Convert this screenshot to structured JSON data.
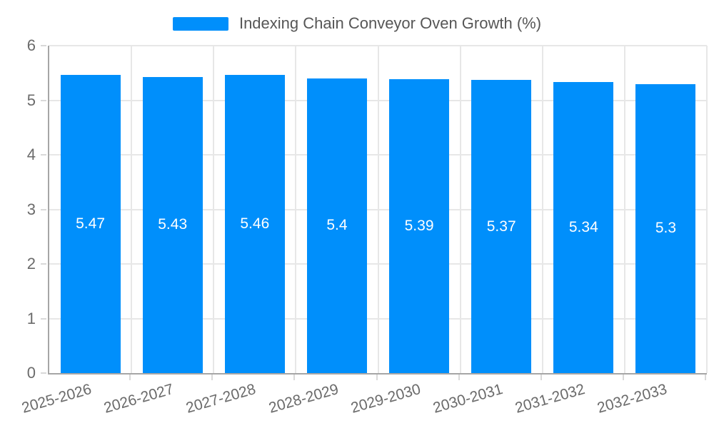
{
  "legend": {
    "label": "Indexing Chain Conveyor Oven Growth (%)"
  },
  "colors": {
    "bar": "#008FFB",
    "bar_label": "#ffffff",
    "legend_text": "#565656",
    "tick_text": "#6b6b6b",
    "grid": "#e7e7e7",
    "axis": "#a6a6a6"
  },
  "chart_data": {
    "type": "bar",
    "title": "Indexing Chain Conveyor Oven Growth (%)",
    "categories": [
      "2025-2026",
      "2026-2027",
      "2027-2028",
      "2028-2029",
      "2029-2030",
      "2030-2031",
      "2031-2032",
      "2032-2033"
    ],
    "values": [
      5.47,
      5.43,
      5.46,
      5.4,
      5.39,
      5.37,
      5.34,
      5.3
    ],
    "labels": [
      "5.47",
      "5.43",
      "5.46",
      "5.4",
      "5.39",
      "5.37",
      "5.34",
      "5.3"
    ],
    "xlabel": "",
    "ylabel": "",
    "ylim": [
      0,
      6
    ],
    "yticks": [
      0,
      1,
      2,
      3,
      4,
      5,
      6
    ],
    "grid": true,
    "legend_position": "top"
  }
}
